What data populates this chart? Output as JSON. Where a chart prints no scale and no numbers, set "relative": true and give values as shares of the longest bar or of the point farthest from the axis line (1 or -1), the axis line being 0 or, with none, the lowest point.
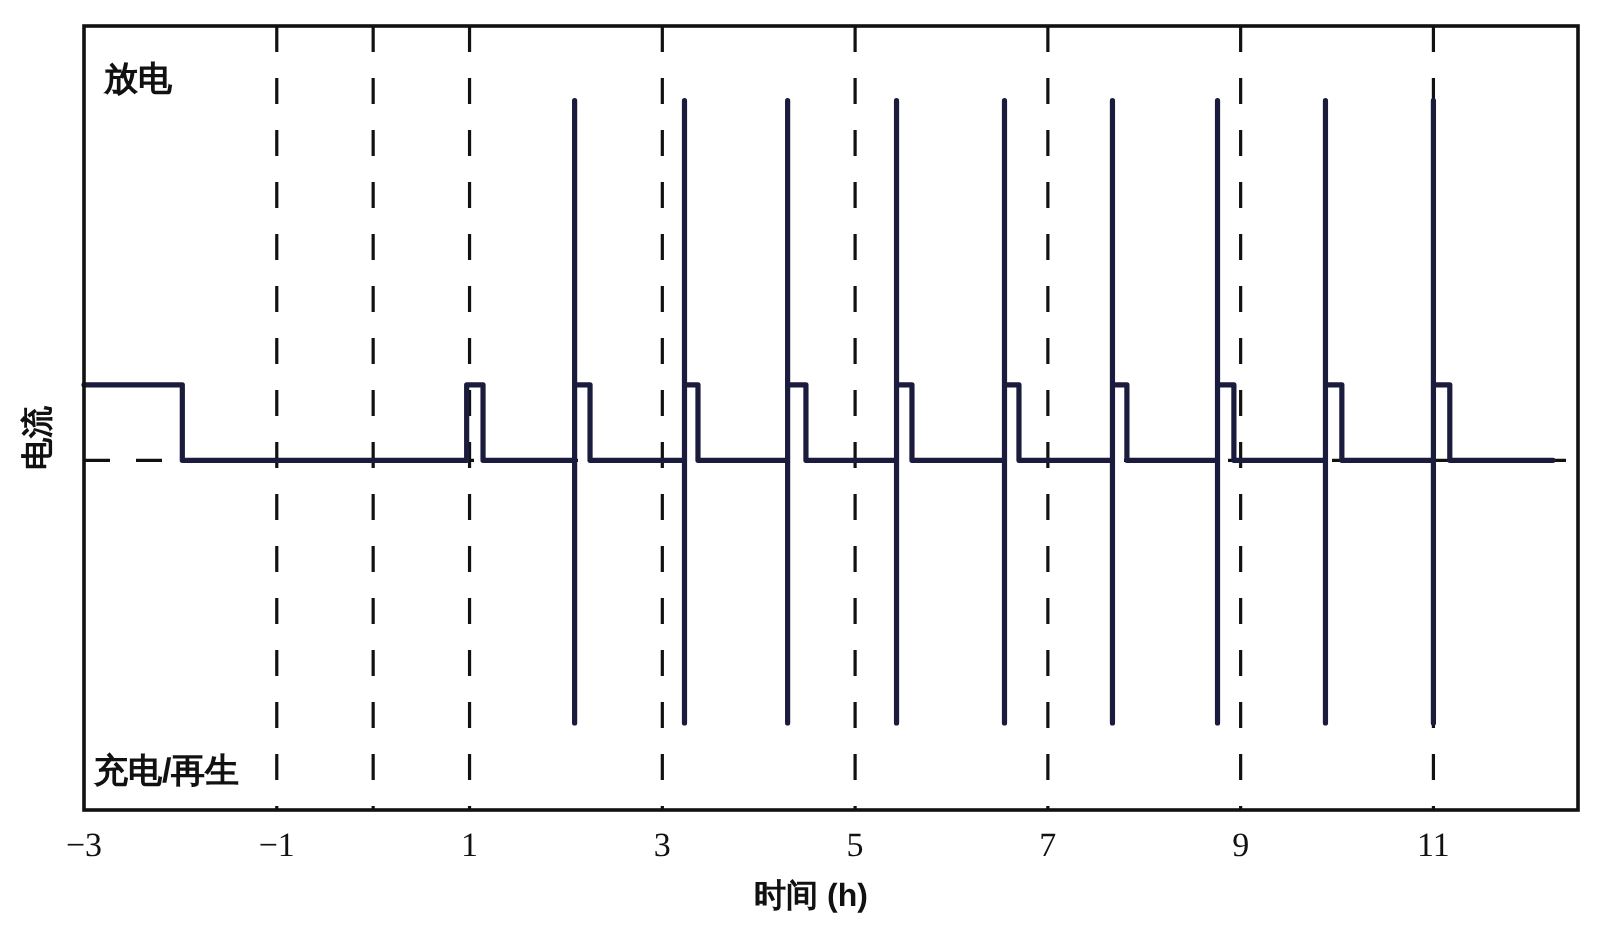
{
  "chart_data": {
    "type": "line",
    "relative": true,
    "xlabel": "时间 (h)",
    "ylabel": "电流",
    "annotations": [
      "放电",
      "充电/再生"
    ],
    "xlim": [
      -3,
      12.5
    ],
    "xticks": [
      -3,
      -1,
      {
        "value": 0,
        "label": null
      },
      1,
      3,
      5,
      7,
      9,
      11
    ],
    "grid": "x",
    "ref_lines": [
      {
        "axis": "y",
        "value": 0,
        "line_style": "dashed"
      }
    ],
    "series": [
      {
        "color": "#1b1b3d",
        "x": [
          -3,
          -1.98,
          -1.98,
          0.97,
          0.97,
          1.14,
          1.14,
          2.09,
          2.09,
          2.09,
          2.09,
          2.25,
          2.25,
          3.23,
          3.23,
          3.23,
          3.23,
          3.37,
          3.37,
          4.3,
          4.3,
          4.3,
          4.3,
          4.49,
          4.49,
          5.43,
          5.43,
          5.43,
          5.43,
          5.59,
          5.59,
          6.55,
          6.55,
          6.55,
          6.55,
          6.7,
          6.7,
          7.67,
          7.67,
          7.67,
          7.67,
          7.82,
          7.82,
          8.76,
          8.76,
          8.76,
          8.76,
          8.93,
          8.93,
          9.88,
          9.88,
          9.88,
          9.88,
          10.05,
          10.05,
          11,
          11,
          11,
          11,
          11.17,
          11.17,
          12.24
        ],
        "values": [
          0.21,
          0.21,
          0,
          0,
          0.21,
          0.21,
          0,
          0,
          1,
          -0.73,
          0.21,
          0.21,
          0,
          0,
          1,
          -0.73,
          0.21,
          0.21,
          0,
          0,
          1,
          -0.73,
          0.21,
          0.21,
          0,
          0,
          1,
          -0.73,
          0.21,
          0.21,
          0,
          0,
          1,
          -0.73,
          0.21,
          0.21,
          0,
          0,
          1,
          -0.73,
          0.21,
          0.21,
          0,
          0,
          1,
          -0.73,
          0.21,
          0.21,
          0,
          0,
          1,
          -0.73,
          0.21,
          0.21,
          0,
          0,
          1,
          -0.73,
          0.21,
          0.21,
          0,
          0
        ]
      }
    ]
  }
}
